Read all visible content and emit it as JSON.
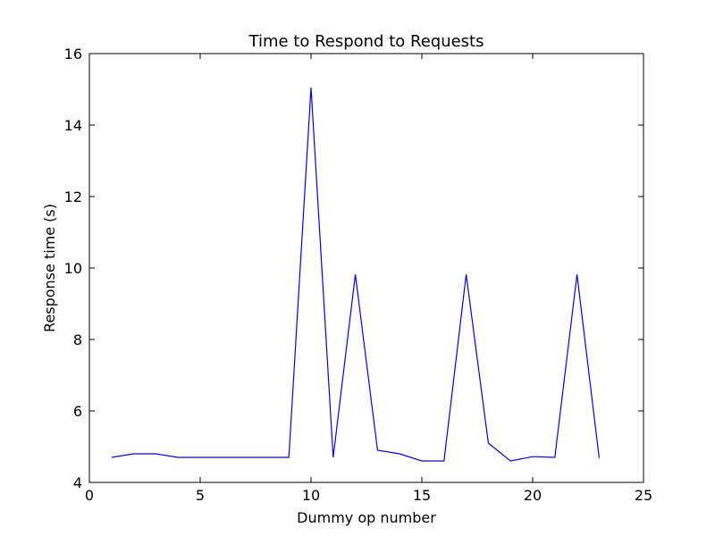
{
  "chart_data": {
    "type": "line",
    "title": "Time to Respond to Requests",
    "xlabel": "Dummy op number",
    "ylabel": "Response time (s)",
    "xlim": [
      0,
      25
    ],
    "ylim": [
      4,
      16
    ],
    "xticks": [
      0,
      5,
      10,
      15,
      20,
      25
    ],
    "yticks": [
      4,
      6,
      8,
      10,
      12,
      14,
      16
    ],
    "grid": false,
    "legend": "none",
    "series": [
      {
        "color": "#0000ff",
        "x": [
          1,
          2,
          3,
          4,
          5,
          6,
          7,
          8,
          9,
          10,
          11,
          12,
          13,
          14,
          15,
          16,
          17,
          18,
          19,
          20,
          21,
          22,
          23
        ],
        "y": [
          4.7,
          4.8,
          4.8,
          4.7,
          4.7,
          4.7,
          4.7,
          4.7,
          4.7,
          15.05,
          4.7,
          9.82,
          4.9,
          4.8,
          4.6,
          4.6,
          9.82,
          5.1,
          4.6,
          4.72,
          4.7,
          9.82,
          4.68
        ]
      }
    ]
  }
}
